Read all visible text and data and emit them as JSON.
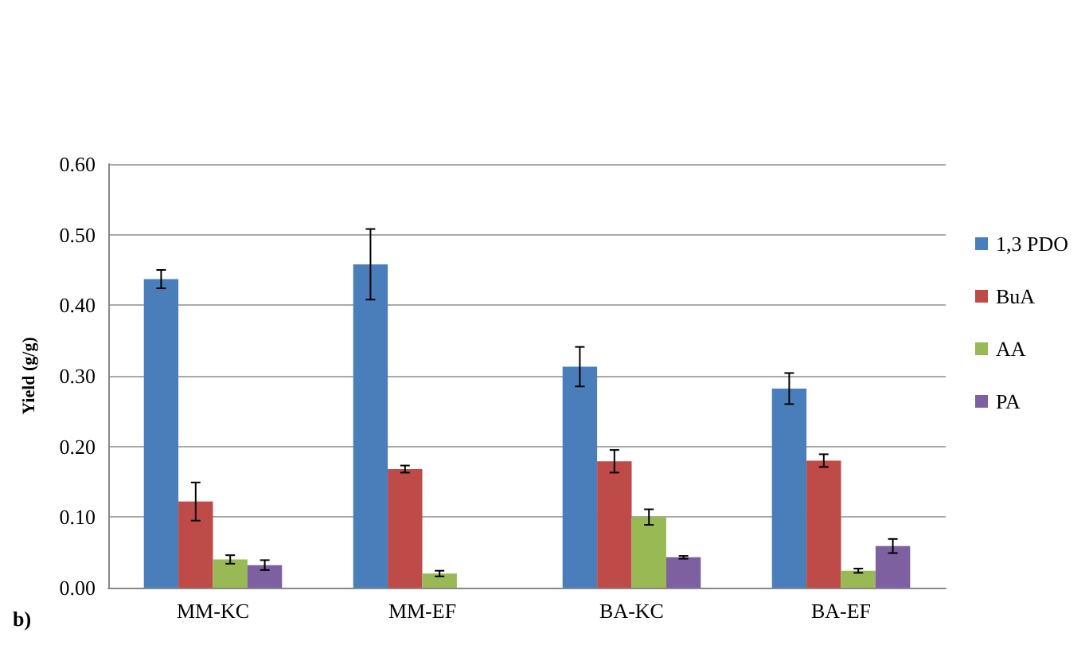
{
  "chart_data": {
    "type": "bar",
    "ylabel": "Yield (g/g)",
    "categories": [
      "MM-KC",
      "MM-EF",
      "BA-KC",
      "BA-EF"
    ],
    "series": [
      {
        "name": "1,3 PDO",
        "color": "#4a7ebb",
        "values": [
          0.437,
          0.458,
          0.313,
          0.282
        ],
        "errors": [
          0.013,
          0.05,
          0.028,
          0.022
        ]
      },
      {
        "name": "BuA",
        "color": "#be4b48",
        "values": [
          0.122,
          0.168,
          0.179,
          0.18
        ],
        "errors": [
          0.027,
          0.005,
          0.016,
          0.009
        ]
      },
      {
        "name": "AA",
        "color": "#98b954",
        "values": [
          0.04,
          0.02,
          0.1,
          0.024
        ],
        "errors": [
          0.006,
          0.004,
          0.011,
          0.003
        ]
      },
      {
        "name": "PA",
        "color": "#7d60a0",
        "values": [
          0.032,
          null,
          0.043,
          0.059
        ],
        "errors": [
          0.007,
          null,
          0.002,
          0.01
        ]
      }
    ],
    "ylim": [
      0,
      0.6
    ],
    "yticks": [
      {
        "value": 0,
        "label": "0.00"
      },
      {
        "value": 0.1,
        "label": "0.10"
      },
      {
        "value": 0.2,
        "label": "0.20"
      },
      {
        "value": 0.3,
        "label": "0.30"
      },
      {
        "value": 0.4,
        "label": "0.40"
      },
      {
        "value": 0.5,
        "label": "0.50"
      },
      {
        "value": 0.6,
        "label": "0.60"
      }
    ],
    "grid": "y",
    "legend": "right",
    "annotations": [
      "b)"
    ]
  }
}
